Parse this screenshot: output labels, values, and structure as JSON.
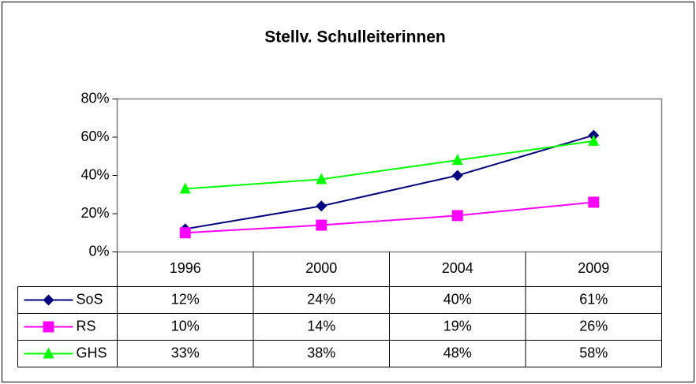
{
  "chart_data": {
    "type": "line",
    "title": "Stellv. Schulleiterinnen",
    "categories": [
      "1996",
      "2000",
      "2004",
      "2009"
    ],
    "series": [
      {
        "name": "SoS",
        "color": "#000080",
        "marker": "diamond",
        "values": [
          12,
          24,
          40,
          61
        ],
        "value_labels": [
          "12%",
          "24%",
          "40%",
          "61%"
        ]
      },
      {
        "name": "RS",
        "color": "#ff00ff",
        "marker": "square",
        "values": [
          10,
          14,
          19,
          26
        ],
        "value_labels": [
          "10%",
          "14%",
          "19%",
          "26%"
        ]
      },
      {
        "name": "GHS",
        "color": "#00ff00",
        "marker": "triangle",
        "values": [
          33,
          38,
          48,
          58
        ],
        "value_labels": [
          "33%",
          "38%",
          "48%",
          "58%"
        ]
      }
    ],
    "ylim": [
      0,
      80
    ],
    "yticks": [
      {
        "value": 0,
        "label": "0%"
      },
      {
        "value": 20,
        "label": "20%"
      },
      {
        "value": 40,
        "label": "40%"
      },
      {
        "value": 60,
        "label": "60%"
      },
      {
        "value": 80,
        "label": "80%"
      }
    ],
    "grid": false,
    "data_table": true
  }
}
